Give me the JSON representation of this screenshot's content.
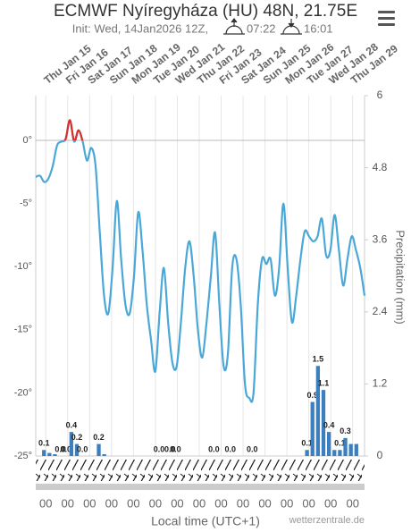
{
  "chart_data": {
    "type": "meteogram",
    "title": "ECMWF Nyíregyháza (HU) 48N, 21.75E",
    "subtitle": {
      "init": "Init: Wed, 14Jan2026 12Z,",
      "sunrise": "07:22",
      "sunset": "16:01"
    },
    "days": [
      "Thu Jan 15",
      "Fri Jan 16",
      "Sat Jan 17",
      "Sun Jan 18",
      "Mon Jan 19",
      "Tue Jan 20",
      "Wed Jan 21",
      "Thu Jan 22",
      "Fri Jan 23",
      "Sat Jan 24",
      "Sun Jan 25",
      "Mon Jan 26",
      "Tue Jan 27",
      "Wed Jan 28",
      "Thu Jan 29"
    ],
    "hours": [
      "00",
      "00",
      "00",
      "00",
      "00",
      "00",
      "00",
      "00",
      "00",
      "00",
      "00",
      "00",
      "00",
      "00",
      "00"
    ],
    "x_label": "Local time (UTC+1)",
    "y2_label": "Precipitation (mm)",
    "credit": "wetterzentrale.de",
    "ylim": [
      -25,
      3.54
    ],
    "yticks": [
      {
        "value": 0,
        "label": "0°"
      },
      {
        "value": -5,
        "label": "-5°"
      },
      {
        "value": -10,
        "label": "-10°"
      },
      {
        "value": -15,
        "label": "-15°"
      },
      {
        "value": -20,
        "label": "-20°"
      },
      {
        "value": -25,
        "label": "-25°"
      }
    ],
    "y2lim": [
      0,
      6
    ],
    "y2ticks": [
      0,
      1.2,
      2.4,
      3.6,
      4.8,
      6
    ],
    "series": [
      {
        "name": "Temperature",
        "color": "#4aa8d8",
        "above_zero_color": "#d9302c",
        "values": [
          -2.9,
          -2.8,
          -3.3,
          -3.0,
          -2.0,
          -0.4,
          -0.1,
          0.1,
          1.6,
          -0.1,
          0.8,
          -0.1,
          -1.6,
          -0.6,
          -2.0,
          -7.3,
          -12.3,
          -13.7,
          -10.1,
          -4.8,
          -9.4,
          -13.0,
          -13.7,
          -10.8,
          -5.7,
          -8.7,
          -13.0,
          -15.8,
          -18.3,
          -13.7,
          -10.1,
          -14.4,
          -17.6,
          -17.9,
          -14.4,
          -10.1,
          -8.0,
          -10.8,
          -15.1,
          -17.2,
          -14.4,
          -10.8,
          -7.3,
          -13.0,
          -17.9,
          -16.9,
          -10.1,
          -9.4,
          -13.0,
          -19.3,
          -20.4,
          -20.0,
          -13.0,
          -9.4,
          -9.8,
          -9.4,
          -12.3,
          -10.1,
          -5.0,
          -10.1,
          -14.4,
          -12.3,
          -9.4,
          -7.2,
          -7.6,
          -8.0,
          -7.6,
          -6.2,
          -9.1,
          -8.7,
          -5.9,
          -8.7,
          -11.5,
          -9.4,
          -7.6,
          -8.7,
          -10.1,
          -12.3
        ]
      },
      {
        "name": "Precipitation",
        "color": "#3b7fbf",
        "axis": "y2",
        "values": [
          0,
          0.1,
          0.05,
          0.03,
          0,
          0,
          0.4,
          0.2,
          0,
          0,
          0,
          0.2,
          0.03,
          0,
          0,
          0,
          0,
          0,
          0,
          0,
          0,
          0,
          0,
          0,
          0,
          0,
          0,
          0,
          0,
          0,
          0,
          0,
          0,
          0,
          0,
          0,
          0,
          0,
          0,
          0,
          0,
          0,
          0,
          0,
          0,
          0,
          0,
          0,
          0,
          0.1,
          0.9,
          1.5,
          1.1,
          0.4,
          0.1,
          0.1,
          0.3,
          0.2,
          0.2,
          0
        ],
        "value_labels": [
          null,
          "0.1",
          null,
          null,
          "0.0",
          "0.0",
          "0.4",
          "0.2",
          "0.0",
          null,
          null,
          "0.2",
          null,
          null,
          null,
          null,
          null,
          null,
          null,
          null,
          null,
          null,
          "0.0",
          null,
          "0.0",
          "0.0",
          null,
          null,
          null,
          null,
          null,
          null,
          "0.0",
          null,
          null,
          "0.0",
          null,
          null,
          null,
          "0.0",
          null,
          null,
          null,
          null,
          null,
          null,
          null,
          null,
          null,
          "0.1",
          "0.9",
          "1.5",
          "1.1",
          "0.4",
          null,
          "0.1",
          "0.3",
          null,
          null,
          null
        ]
      }
    ]
  }
}
